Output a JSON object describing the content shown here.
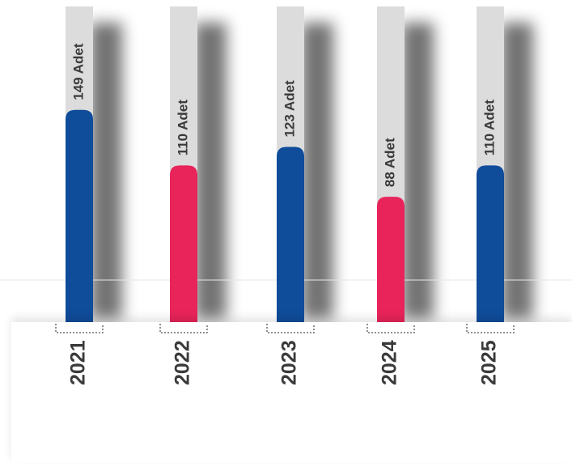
{
  "colors": {
    "blue": "#0f4c9a",
    "pink": "#e8245a",
    "track": "#dcdcdc",
    "label": "#3a3a3a"
  },
  "chart_data": {
    "type": "bar",
    "categories": [
      "2021",
      "2022",
      "2023",
      "2024",
      "2025"
    ],
    "values": [
      149,
      110,
      123,
      88,
      110
    ],
    "data_labels": [
      "149 Adet",
      "110 Adet",
      "123 Adet",
      "88 Adet",
      "110 Adet"
    ],
    "bar_colors": [
      "blue",
      "pink",
      "blue",
      "pink",
      "blue"
    ],
    "title": "",
    "xlabel": "",
    "ylabel": "",
    "legend": "none",
    "grid": false
  }
}
